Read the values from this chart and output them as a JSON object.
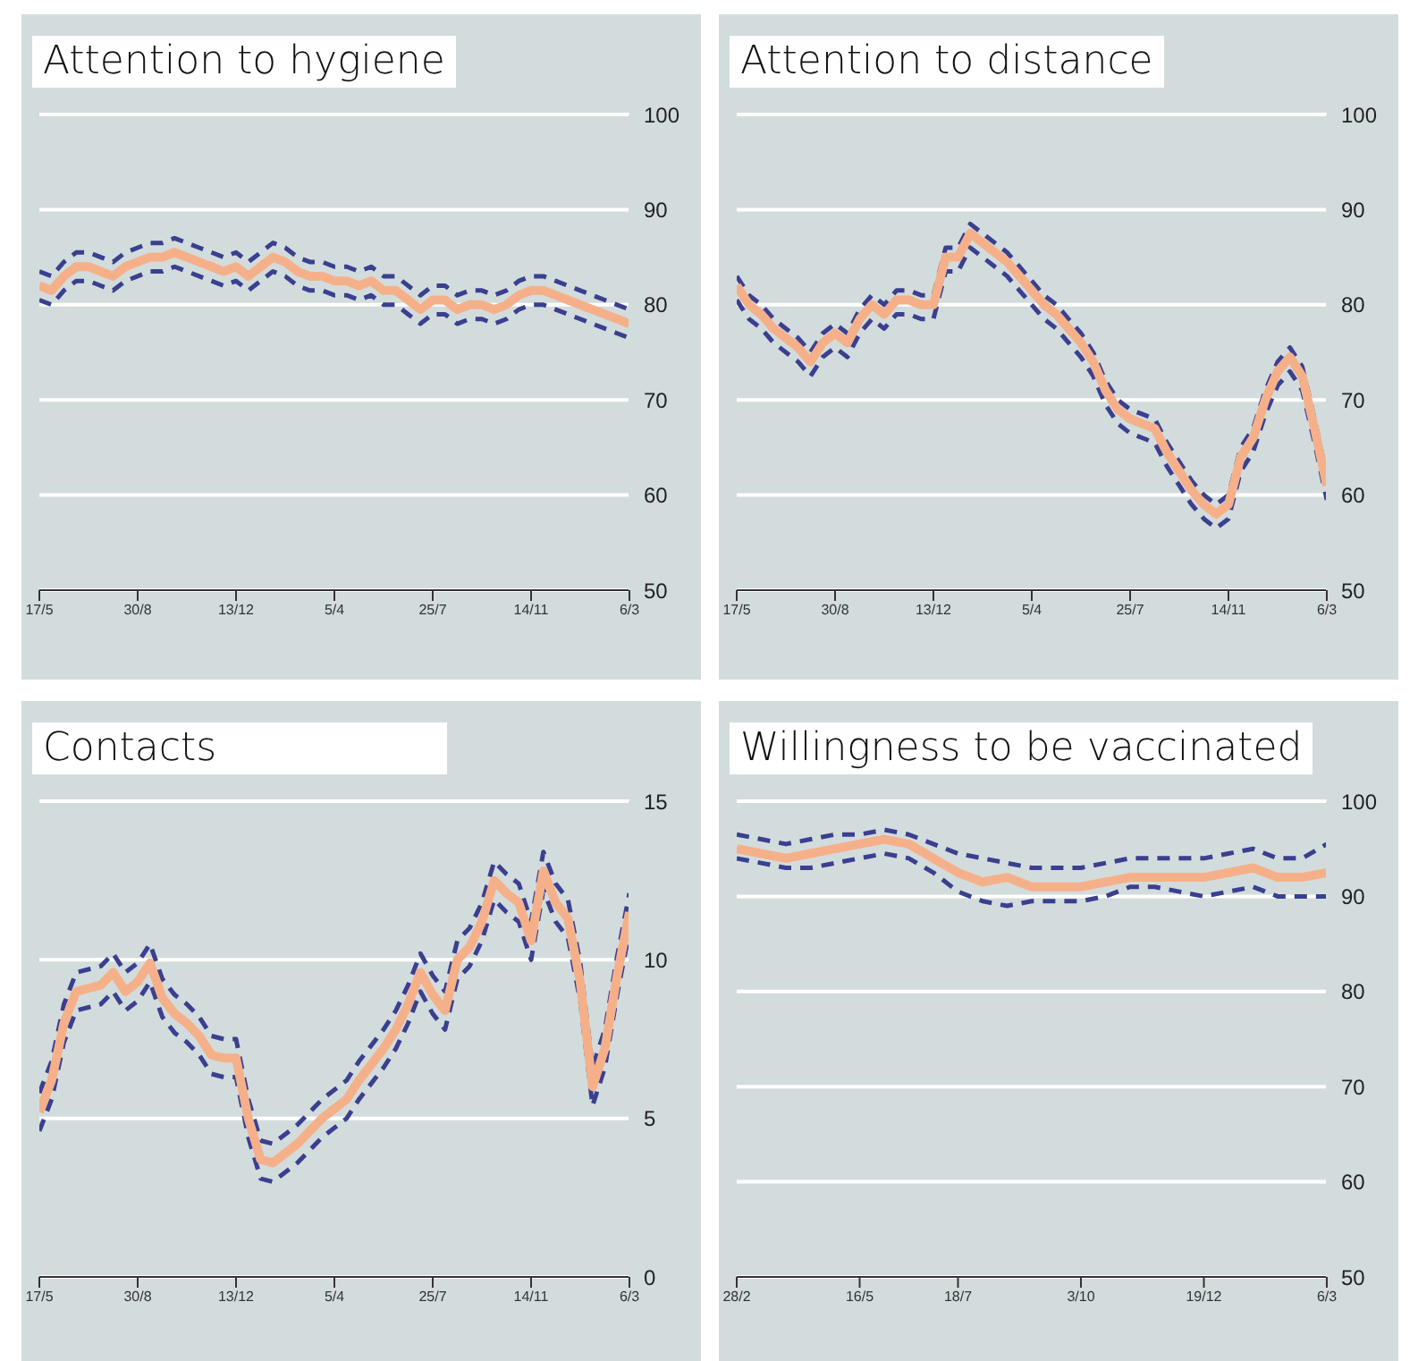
{
  "chart_data": [
    {
      "type": "line",
      "title": "Attention to hygiene",
      "grid": "y",
      "marker": "none",
      "categories": [
        "17/5",
        null,
        null,
        null,
        null,
        null,
        null,
        null,
        "30/8",
        null,
        null,
        null,
        null,
        null,
        null,
        null,
        "13/12",
        null,
        null,
        null,
        null,
        null,
        null,
        null,
        "5/4",
        null,
        null,
        null,
        null,
        null,
        null,
        null,
        "25/7",
        null,
        null,
        null,
        null,
        null,
        null,
        null,
        "14/11",
        null,
        null,
        null,
        null,
        null,
        null,
        null,
        "6/3"
      ],
      "ylim": [
        50,
        100
      ],
      "yticks": [
        50,
        60,
        70,
        80,
        90,
        100
      ],
      "series": [
        {
          "color": "#f5b08a",
          "values": [
            82,
            81.5,
            83,
            84,
            84,
            83.5,
            83,
            84,
            84.5,
            85,
            85,
            85.5,
            85,
            84.5,
            84,
            83.5,
            84,
            83,
            84,
            85,
            84.5,
            83.5,
            83,
            83,
            82.5,
            82.5,
            82,
            82.5,
            81.5,
            81.5,
            80.5,
            79.5,
            80.5,
            80.5,
            79.5,
            80,
            80,
            79.5,
            80,
            81,
            81.5,
            81.5,
            81,
            80.5,
            80,
            79.5,
            79,
            78.5,
            78
          ]
        },
        {
          "color": "#3b3f8f",
          "line_style": "dashed",
          "values": [
            83.5,
            83,
            84.5,
            85.5,
            85.5,
            85,
            84.5,
            85.5,
            86,
            86.5,
            86.5,
            87,
            86.5,
            86,
            85.5,
            85,
            85.5,
            84.5,
            85.5,
            86.5,
            86,
            85,
            84.5,
            84.5,
            84,
            84,
            83.5,
            84,
            83,
            83,
            82,
            81,
            82,
            82,
            81,
            81.5,
            81.5,
            81,
            81.5,
            82.5,
            83,
            83,
            82.5,
            82,
            81.5,
            81,
            80.5,
            80,
            79.5
          ]
        },
        {
          "color": "#3b3f8f",
          "line_style": "dashed",
          "values": [
            80.5,
            80,
            81.5,
            82.5,
            82.5,
            82,
            81.5,
            82.5,
            83,
            83.5,
            83.5,
            84,
            83.5,
            83,
            82.5,
            82,
            82.5,
            81.5,
            82.5,
            83.5,
            83,
            82,
            81.5,
            81.5,
            81,
            81,
            80.5,
            81,
            80,
            80,
            79,
            78,
            79,
            79,
            78,
            78.5,
            78.5,
            78,
            78.5,
            79.5,
            80,
            80,
            79.5,
            79,
            78.5,
            78,
            77.5,
            77,
            76.5
          ]
        }
      ]
    },
    {
      "type": "line",
      "title": "Attention to distance",
      "grid": "y",
      "marker": "none",
      "categories": [
        "17/5",
        null,
        null,
        null,
        null,
        null,
        null,
        null,
        "30/8",
        null,
        null,
        null,
        null,
        null,
        null,
        null,
        "13/12",
        null,
        null,
        null,
        null,
        null,
        null,
        null,
        "5/4",
        null,
        null,
        null,
        null,
        null,
        null,
        null,
        "25/7",
        null,
        null,
        null,
        null,
        null,
        null,
        null,
        "14/11",
        null,
        null,
        null,
        null,
        null,
        null,
        null,
        "6/3"
      ],
      "ylim": [
        50,
        100
      ],
      "yticks": [
        50,
        60,
        70,
        80,
        90,
        100
      ],
      "series": [
        {
          "color": "#f5b08a",
          "values": [
            82,
            80,
            79,
            77.5,
            76.5,
            75.5,
            74,
            76,
            77,
            76,
            78.5,
            80,
            79,
            80.5,
            80.5,
            80,
            80,
            85,
            85,
            87.5,
            86.5,
            85.5,
            84.5,
            83,
            81.5,
            80,
            79,
            77.5,
            76,
            74,
            71,
            69,
            68,
            67.5,
            67,
            64.5,
            62.5,
            60.5,
            59,
            58,
            59,
            64,
            66,
            70,
            73,
            74.5,
            72.5,
            67,
            61
          ]
        },
        {
          "color": "#3b3f8f",
          "line_style": "dashed",
          "values": [
            83,
            81,
            80,
            78.5,
            77.5,
            76.5,
            75,
            77,
            78,
            77,
            79.5,
            81,
            80,
            81.5,
            81.5,
            81,
            81,
            86,
            86,
            88.5,
            87.5,
            86.5,
            85.5,
            84,
            82.5,
            81,
            80,
            78.5,
            77,
            75,
            72,
            70,
            69,
            68.5,
            68,
            65.5,
            63.5,
            61.5,
            60,
            59,
            60,
            65,
            67,
            71,
            74,
            75.5,
            73.5,
            68,
            62
          ]
        },
        {
          "color": "#3b3f8f",
          "line_style": "dashed",
          "values": [
            80.5,
            78.5,
            77.5,
            76,
            75,
            74,
            72.5,
            74.5,
            75.5,
            74.5,
            77,
            78.5,
            77.5,
            79,
            79,
            78.5,
            78.5,
            83.5,
            83.5,
            86,
            85,
            84,
            83,
            81.5,
            80,
            78.5,
            77.5,
            76,
            74.5,
            72.5,
            69.5,
            67.5,
            66.5,
            66,
            65.5,
            63,
            61,
            59,
            57.5,
            56.5,
            57.5,
            62.5,
            64.5,
            68.5,
            71.5,
            73,
            71,
            65.5,
            59.5
          ]
        }
      ]
    },
    {
      "type": "line",
      "title": "Contacts",
      "grid": "y",
      "marker": "none",
      "categories": [
        "17/5",
        null,
        null,
        null,
        null,
        null,
        null,
        null,
        "30/8",
        null,
        null,
        null,
        null,
        null,
        null,
        null,
        "13/12",
        null,
        null,
        null,
        null,
        null,
        null,
        null,
        "5/4",
        null,
        null,
        null,
        null,
        null,
        null,
        null,
        "25/7",
        null,
        null,
        null,
        null,
        null,
        null,
        null,
        "14/11",
        null,
        null,
        null,
        null,
        null,
        null,
        null,
        "6/3"
      ],
      "ylim": [
        0,
        15
      ],
      "yticks": [
        0,
        5,
        10,
        15
      ],
      "series": [
        {
          "color": "#f5b08a",
          "values": [
            5.2,
            6.2,
            8.0,
            9.0,
            9.1,
            9.2,
            9.6,
            9.0,
            9.3,
            9.9,
            8.8,
            8.3,
            8.0,
            7.6,
            7.0,
            6.9,
            6.9,
            5.0,
            3.7,
            3.6,
            3.9,
            4.2,
            4.6,
            5.0,
            5.3,
            5.6,
            6.2,
            6.7,
            7.2,
            7.8,
            8.6,
            9.6,
            8.9,
            8.4,
            10.0,
            10.4,
            11.2,
            12.5,
            12.1,
            11.8,
            10.6,
            12.8,
            11.8,
            11.3,
            9.3,
            6.0,
            7.2,
            9.5,
            11.5
          ]
        },
        {
          "color": "#3b3f8f",
          "line_style": "dashed",
          "values": [
            5.8,
            6.8,
            8.6,
            9.6,
            9.7,
            9.8,
            10.2,
            9.6,
            9.9,
            10.5,
            9.4,
            8.9,
            8.6,
            8.2,
            7.6,
            7.5,
            7.5,
            5.6,
            4.3,
            4.2,
            4.5,
            4.8,
            5.2,
            5.6,
            5.9,
            6.2,
            6.8,
            7.3,
            7.8,
            8.4,
            9.2,
            10.2,
            9.5,
            9.0,
            10.6,
            11.0,
            11.8,
            13.1,
            12.7,
            12.4,
            11.2,
            13.4,
            12.4,
            11.9,
            9.9,
            6.6,
            7.8,
            10.1,
            12.1
          ]
        },
        {
          "color": "#3b3f8f",
          "line_style": "dashed",
          "values": [
            4.6,
            5.6,
            7.4,
            8.4,
            8.5,
            8.6,
            9.0,
            8.4,
            8.7,
            9.3,
            8.2,
            7.7,
            7.4,
            7.0,
            6.4,
            6.3,
            6.3,
            4.4,
            3.1,
            3.0,
            3.3,
            3.6,
            4.0,
            4.4,
            4.7,
            5.0,
            5.6,
            6.1,
            6.6,
            7.2,
            8.0,
            9.0,
            8.3,
            7.8,
            9.4,
            9.8,
            10.6,
            11.9,
            11.5,
            11.2,
            10.0,
            12.2,
            11.2,
            10.7,
            8.7,
            5.4,
            6.6,
            8.9,
            10.9
          ]
        }
      ]
    },
    {
      "type": "line",
      "title": "Willingness to be vaccinated",
      "grid": "y",
      "marker": "none",
      "categories": [
        "28/2",
        null,
        null,
        null,
        null,
        "16/5",
        null,
        null,
        null,
        "18/7",
        null,
        null,
        null,
        null,
        "3/10",
        null,
        null,
        null,
        null,
        "19/12",
        null,
        null,
        null,
        null,
        "6/3"
      ],
      "ylim": [
        50,
        100
      ],
      "yticks": [
        50,
        60,
        70,
        80,
        90,
        100
      ],
      "series": [
        {
          "color": "#f5b08a",
          "values": [
            95,
            94.5,
            94,
            94.5,
            95,
            95.5,
            96,
            95.5,
            94,
            92.5,
            91.5,
            92,
            91,
            91,
            91,
            91.5,
            92,
            92,
            92,
            92,
            92.5,
            93,
            92,
            92,
            92.5
          ]
        },
        {
          "color": "#3b3f8f",
          "line_style": "dashed",
          "values": [
            96.5,
            96,
            95.5,
            96,
            96.5,
            96.5,
            97,
            96.5,
            95.5,
            94.5,
            94,
            93.5,
            93,
            93,
            93,
            93.5,
            94,
            94,
            94,
            94,
            94.5,
            95,
            94,
            94,
            95.5
          ]
        },
        {
          "color": "#3b3f8f",
          "line_style": "dashed",
          "values": [
            94,
            93.5,
            93,
            93,
            93.5,
            94,
            94.5,
            94,
            92.5,
            90.5,
            89.5,
            89,
            89.5,
            89.5,
            89.5,
            90,
            91,
            91,
            90.5,
            90,
            90.5,
            91,
            90,
            90,
            90
          ]
        }
      ]
    }
  ]
}
